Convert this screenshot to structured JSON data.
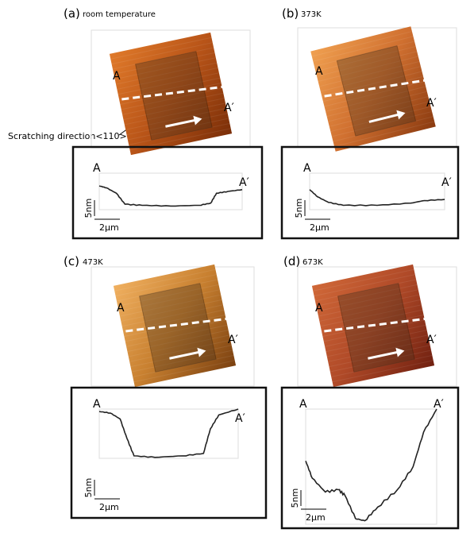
{
  "panels": [
    {
      "label": "(a)",
      "condition": "room temperature",
      "point_start": "A",
      "point_end": "A′",
      "scale_height": "5nm",
      "scale_width": "2μm"
    },
    {
      "label": "(b)",
      "condition": "373K",
      "point_start": "A",
      "point_end": "A′",
      "scale_height": "5nm",
      "scale_width": "2μm"
    },
    {
      "label": "(c)",
      "condition": "473K",
      "point_start": "A",
      "point_end": "A′",
      "scale_height": "5nm",
      "scale_width": "2μm"
    },
    {
      "label": "(d)",
      "condition": "673K",
      "point_start": "A",
      "point_end": "A′",
      "scale_height": "5nm",
      "scale_width": "2μm"
    }
  ],
  "annotation": "Scratching direction<110>"
}
